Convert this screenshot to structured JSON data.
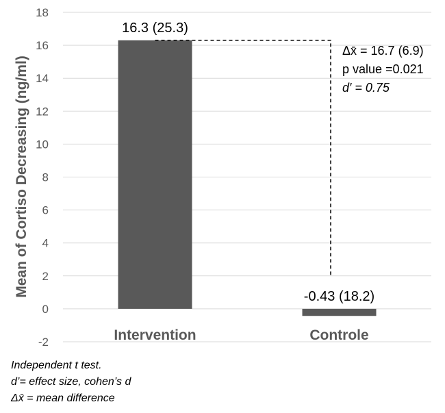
{
  "chart_data": {
    "type": "bar",
    "categories": [
      "Intervention",
      "Controle"
    ],
    "values": [
      16.3,
      -0.43
    ],
    "data_labels": [
      "16.3 (25.3)",
      "-0.43 (18.2)"
    ],
    "ylabel": "Mean of Cortiso Decreasing (ng/ml)",
    "ylim": [
      -2,
      18
    ],
    "yticks": [
      -2,
      0,
      2,
      4,
      6,
      8,
      10,
      12,
      14,
      16,
      18
    ],
    "grid": true,
    "bar_color": "#595959",
    "annotation": {
      "lines": [
        "Δx̄ = 16.7 (6.9)",
        "p value =0.021",
        "d′ = 0.75"
      ]
    }
  },
  "footnotes": {
    "test": "Independent t test.",
    "effect_size": "d’= effect size, cohen’s d",
    "mean_difference": "Δx̄ = mean difference"
  }
}
